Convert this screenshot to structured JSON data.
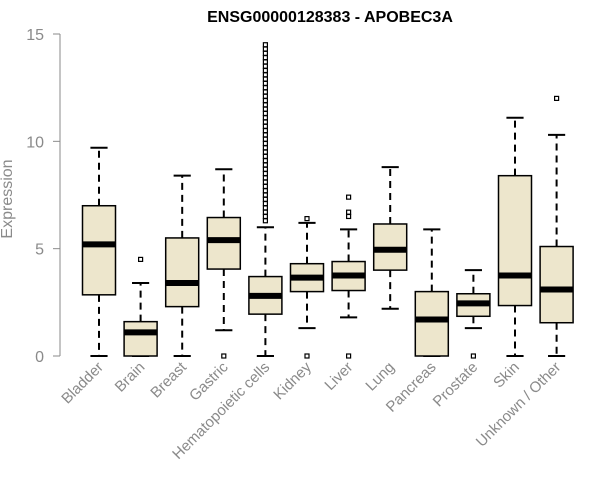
{
  "chart_data": {
    "type": "boxplot",
    "title": "ENSG00000128383 - APOBEC3A",
    "xlabel": "",
    "ylabel": "Expression",
    "ylim": [
      0,
      15
    ],
    "yticks": [
      0,
      5,
      10,
      15
    ],
    "grid": false,
    "colors": {
      "box_fill": "#ede6cc",
      "stroke": "#000000",
      "axis": "#8a8a8a"
    },
    "categories": [
      "Bladder",
      "Brain",
      "Breast",
      "Gastric",
      "Hematopoietic cells",
      "Kidney",
      "Liver",
      "Lung",
      "Pancreas",
      "Prostate",
      "Skin",
      "Unknown / Other"
    ],
    "boxes": [
      {
        "name": "Bladder",
        "whisker_low": 0,
        "q1": 2.85,
        "median": 5.2,
        "q3": 7.0,
        "whisker_high": 9.7,
        "outliers": []
      },
      {
        "name": "Brain",
        "whisker_low": 0,
        "q1": 0.0,
        "median": 1.1,
        "q3": 1.6,
        "whisker_high": 3.4,
        "outliers": [
          4.5
        ]
      },
      {
        "name": "Breast",
        "whisker_low": 0,
        "q1": 2.3,
        "median": 3.4,
        "q3": 5.5,
        "whisker_high": 8.4,
        "outliers": []
      },
      {
        "name": "Gastric",
        "whisker_low": 1.2,
        "q1": 4.05,
        "median": 5.4,
        "q3": 6.45,
        "whisker_high": 8.7,
        "outliers": [
          0
        ]
      },
      {
        "name": "Hematopoietic cells",
        "whisker_low": 0,
        "q1": 1.95,
        "median": 2.8,
        "q3": 3.7,
        "whisker_high": 6.0,
        "outliers": [
          6.3,
          6.5,
          6.7,
          6.9,
          7.1,
          7.3,
          7.5,
          7.7,
          7.9,
          8.1,
          8.3,
          8.5,
          8.7,
          8.9,
          9.1,
          9.3,
          9.5,
          9.7,
          9.9,
          10.1,
          10.3,
          10.5,
          10.7,
          10.9,
          11.1,
          11.3,
          11.5,
          11.7,
          11.9,
          12.1,
          12.3,
          12.5,
          12.7,
          12.9,
          13.1,
          13.3,
          13.5,
          13.7,
          13.9,
          14.1,
          14.3,
          14.5
        ]
      },
      {
        "name": "Kidney",
        "whisker_low": 1.3,
        "q1": 3.0,
        "median": 3.65,
        "q3": 4.3,
        "whisker_high": 6.2,
        "outliers": [
          0,
          6.4
        ]
      },
      {
        "name": "Liver",
        "whisker_low": 1.8,
        "q1": 3.05,
        "median": 3.75,
        "q3": 4.4,
        "whisker_high": 5.9,
        "outliers": [
          0,
          6.5,
          6.7,
          7.4
        ]
      },
      {
        "name": "Lung",
        "whisker_low": 2.2,
        "q1": 4.0,
        "median": 4.95,
        "q3": 6.15,
        "whisker_high": 8.8,
        "outliers": []
      },
      {
        "name": "Pancreas",
        "whisker_low": 0,
        "q1": 0.0,
        "median": 1.7,
        "q3": 3.0,
        "whisker_high": 5.9,
        "outliers": []
      },
      {
        "name": "Prostate",
        "whisker_low": 1.3,
        "q1": 1.85,
        "median": 2.45,
        "q3": 2.9,
        "whisker_high": 4.0,
        "outliers": [
          0
        ]
      },
      {
        "name": "Skin",
        "whisker_low": 0,
        "q1": 2.35,
        "median": 3.75,
        "q3": 8.4,
        "whisker_high": 11.1,
        "outliers": []
      },
      {
        "name": "Unknown / Other",
        "whisker_low": 0,
        "q1": 1.55,
        "median": 3.1,
        "q3": 5.1,
        "whisker_high": 10.3,
        "outliers": [
          12.0
        ]
      }
    ]
  }
}
